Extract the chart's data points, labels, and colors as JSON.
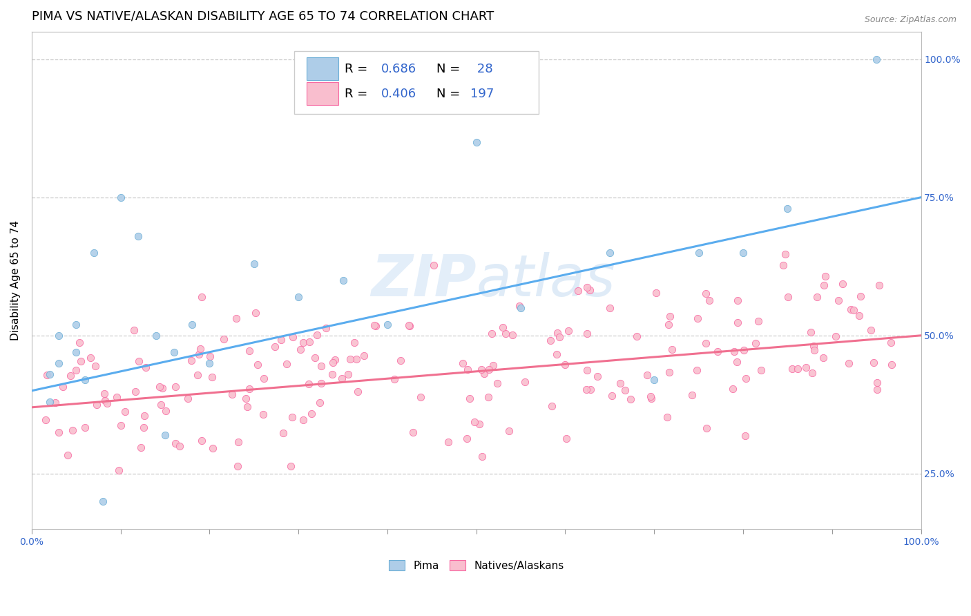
{
  "title": "PIMA VS NATIVE/ALASKAN DISABILITY AGE 65 TO 74 CORRELATION CHART",
  "source_text": "Source: ZipAtlas.com",
  "ylabel": "Disability Age 65 to 74",
  "xlim": [
    0.0,
    100.0
  ],
  "ylim": [
    15.0,
    105.0
  ],
  "yticks_right": [
    25.0,
    50.0,
    75.0,
    100.0
  ],
  "watermark": "ZIPAtlas",
  "pima_color": "#aecde8",
  "pima_color_dark": "#6baed6",
  "native_color": "#f9bece",
  "native_color_dark": "#f768a1",
  "line_pima_color": "#5aacee",
  "line_native_color": "#f07090",
  "legend_r_color": "#3366cc",
  "pima_R": 0.686,
  "pima_N": 28,
  "native_R": 0.406,
  "native_N": 197,
  "grid_color": "#cccccc",
  "bg_color": "#ffffff",
  "title_fontsize": 13,
  "axis_label_fontsize": 11,
  "tick_fontsize": 10,
  "legend_fontsize": 13,
  "line_pima_start_y": 40.0,
  "line_pima_end_y": 75.0,
  "line_native_start_y": 37.0,
  "line_native_end_y": 50.0
}
